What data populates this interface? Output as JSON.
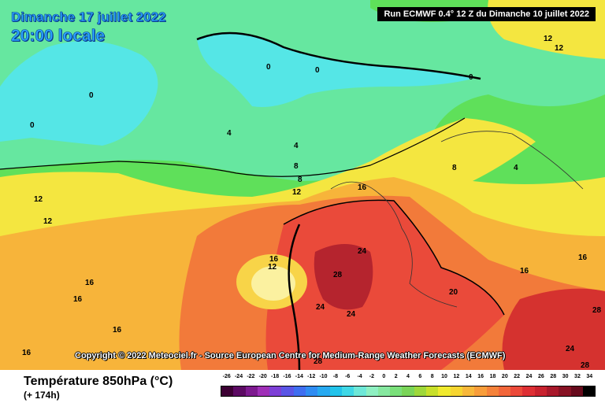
{
  "header": {
    "date": "Dimanche 17 juillet 2022",
    "time": "20:00 locale",
    "run_info": "Run ECMWF 0.4° 12 Z du Dimanche 10 juillet 2022"
  },
  "copyright": "Copyright © 2022 Meteociel.fr - Source European Centre for Medium-Range Weather Forecasts (ECMWF)",
  "footer": {
    "parameter": "Température 850hPa (°C)",
    "horizon": "(+ 174h)"
  },
  "colorbar": {
    "labels": [
      "-26",
      "-24",
      "-22",
      "-20",
      "-18",
      "-16",
      "-14",
      "-12",
      "-10",
      "-8",
      "-6",
      "-4",
      "-2",
      "0",
      "2",
      "4",
      "6",
      "8",
      "10",
      "12",
      "14",
      "16",
      "18",
      "20",
      "22",
      "24",
      "26",
      "28",
      "30",
      "32",
      "34"
    ],
    "colors": [
      "#3c0033",
      "#5c0a63",
      "#7d1a8f",
      "#9f2fb7",
      "#7d3fd6",
      "#5a55e6",
      "#3f6ef0",
      "#2f8cf2",
      "#27a9f0",
      "#22c3ea",
      "#3fd8e6",
      "#6ee8d8",
      "#8ef0c2",
      "#86e8a0",
      "#7ae07a",
      "#7ad558",
      "#9ed83a",
      "#c8e02a",
      "#f0ea2e",
      "#f6d530",
      "#f8b83a",
      "#f89d3a",
      "#f5823a",
      "#f2663a",
      "#ec4a3a",
      "#de2f34",
      "#c8222e",
      "#a8182a",
      "#871224",
      "#660a1c",
      "#000000"
    ]
  },
  "map_labels": {
    "isotherms": [
      "0",
      "4",
      "8",
      "12",
      "16",
      "20",
      "24",
      "28"
    ]
  }
}
